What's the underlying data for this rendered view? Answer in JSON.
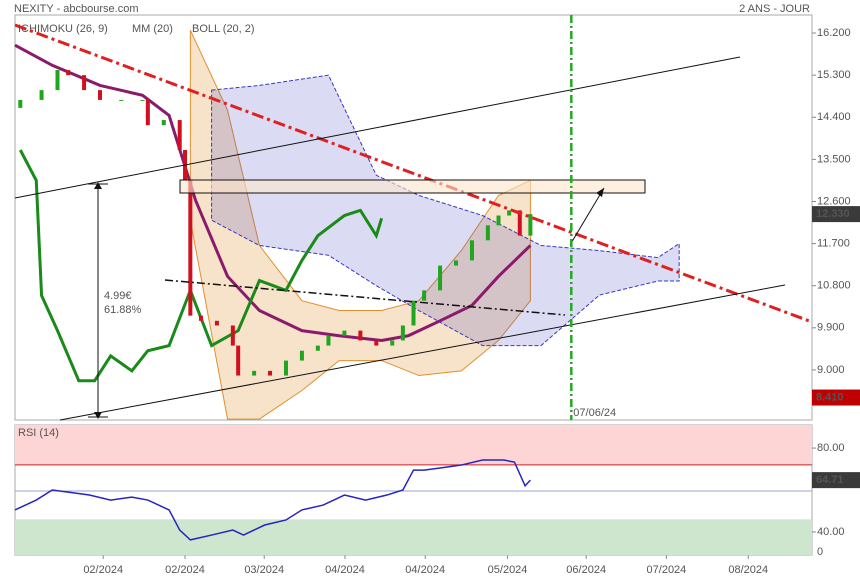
{
  "header": {
    "title": "NEXITY - abcbourse.com",
    "period": "2 ANS - JOUR"
  },
  "chart_data": [
    {
      "type": "candlestick",
      "xlim": [
        0,
        150
      ],
      "ylim": [
        7.93,
        16.585
      ],
      "yticks": [
        {
          "value": 16.2,
          "label": "16.200"
        },
        {
          "value": 15.3,
          "label": "15.300"
        },
        {
          "value": 14.4,
          "label": "14.400"
        },
        {
          "value": 13.5,
          "label": "13.500"
        },
        {
          "value": 12.6,
          "label": "12.600"
        },
        {
          "value": 11.7,
          "label": "11.700"
        },
        {
          "value": 10.8,
          "label": "10.800"
        },
        {
          "value": 9.9,
          "label": "9.900"
        },
        {
          "value": 9.0,
          "label": "9.000"
        }
      ],
      "xticks": [
        {
          "value": 16.6,
          "label": "02/2024"
        },
        {
          "value": 32,
          "label": "02/2024"
        },
        {
          "value": 46.9,
          "label": "03/2024"
        },
        {
          "value": 62.1,
          "label": "04/2024"
        },
        {
          "value": 77.2,
          "label": "04/2024"
        },
        {
          "value": 92.7,
          "label": "05/2024"
        },
        {
          "value": 107.5,
          "label": "06/2024"
        },
        {
          "value": 122.6,
          "label": "07/2024"
        },
        {
          "value": 138,
          "label": "08/2024"
        }
      ],
      "x": [
        1,
        5,
        8,
        10,
        13,
        16,
        20,
        24,
        25,
        28,
        31,
        32,
        33,
        35,
        38,
        41,
        42,
        45,
        48,
        51,
        54,
        57,
        59,
        62,
        65,
        68,
        71,
        73,
        75,
        77,
        80,
        83,
        86,
        89,
        91,
        93,
        95,
        97
      ],
      "open": [
        14.6,
        14.77,
        14.98,
        15.41,
        15.3,
        14.98,
        14.77,
        14.77,
        14.77,
        14.23,
        14.34,
        13.7,
        13.05,
        10.16,
        10.05,
        9.95,
        9.52,
        8.88,
        8.98,
        8.88,
        9.2,
        9.41,
        9.52,
        9.73,
        9.84,
        9.63,
        9.52,
        9.63,
        9.95,
        10.48,
        10.7,
        11.23,
        11.34,
        11.77,
        12.09,
        12.3,
        12.41,
        11.87
      ],
      "close": [
        14.77,
        14.98,
        15.41,
        15.3,
        14.98,
        14.77,
        14.77,
        14.77,
        14.23,
        14.34,
        13.7,
        13.05,
        10.16,
        10.05,
        9.95,
        9.52,
        8.88,
        8.98,
        8.88,
        9.2,
        9.41,
        9.52,
        9.73,
        9.84,
        9.63,
        9.52,
        9.63,
        9.95,
        10.48,
        10.7,
        11.23,
        11.34,
        11.77,
        12.09,
        12.3,
        12.41,
        11.87,
        12.33
      ],
      "up_color": "#1fa51f",
      "down_color": "#d0101e",
      "ichimoku": {
        "name": "ICHIMOKU (26, 9)",
        "color": "#3838c0",
        "cloud_x": [
          37,
          46,
          59,
          68,
          76,
          88,
          99,
          110,
          121,
          125
        ],
        "cloud_upper": [
          14.98,
          15.08,
          15.3,
          13.16,
          12.73,
          12.3,
          11.66,
          11.55,
          11.4,
          11.7
        ],
        "cloud_lower": [
          12.2,
          11.66,
          11.45,
          10.8,
          10.27,
          9.52,
          9.52,
          10.6,
          10.9,
          10.9
        ],
        "chikou_color": "#1a8a1a",
        "chikou_x": [
          1,
          4,
          5,
          8,
          12,
          15,
          18,
          22,
          25,
          29,
          33,
          37,
          42,
          46,
          51,
          54,
          57,
          62,
          65,
          68,
          69
        ],
        "chikou": [
          13.7,
          13.05,
          10.59,
          9.84,
          8.77,
          8.77,
          9.3,
          8.98,
          9.41,
          9.52,
          10.7,
          9.52,
          9.84,
          10.91,
          10.7,
          11.34,
          11.87,
          12.3,
          12.41,
          11.87,
          12.24
        ]
      },
      "mm": {
        "name": "MM (20)",
        "color": "#8b1a6b",
        "x": [
          0,
          7,
          16,
          24,
          29,
          34,
          40,
          46,
          54,
          61,
          69,
          74,
          80,
          86,
          91,
          97
        ],
        "values": [
          15.94,
          15.51,
          15.08,
          14.87,
          14.44,
          12.62,
          11.0,
          10.27,
          9.84,
          9.73,
          9.63,
          9.73,
          10.05,
          10.38,
          11.0,
          11.66
        ]
      },
      "boll": {
        "name": "BOLL (20, 2)",
        "color": "#e0902c",
        "x": [
          33,
          40,
          46,
          54,
          61,
          69,
          76,
          84,
          91,
          97
        ],
        "upper": [
          16.26,
          14.55,
          11.66,
          10.48,
          10.27,
          10.27,
          10.48,
          11.55,
          12.73,
          13.05
        ],
        "lower": [
          12.2,
          7.95,
          7.95,
          8.56,
          9.2,
          9.2,
          8.88,
          8.98,
          9.63,
          10.48
        ]
      },
      "last_value": 12.33,
      "last_value_label": "12.330",
      "low_value": 8.41,
      "low_value_label": "8.410",
      "marker": {
        "x": 104.7,
        "label": "07/06/24"
      },
      "annotation": [
        "4.99€",
        "61.88%"
      ]
    },
    {
      "type": "line",
      "title": "RSI (14)",
      "color": "#2424c0",
      "ylim": [
        29,
        91
      ],
      "yticks": [
        {
          "value": 80,
          "label": "80.00"
        },
        {
          "value": 40,
          "label": "40.00"
        }
      ],
      "bottom_label": "0",
      "overbought": 72,
      "midline": 59.5,
      "oversold": 46,
      "x": [
        0,
        4,
        7,
        10,
        14,
        18,
        22,
        25,
        29,
        31,
        33,
        37,
        41,
        43,
        47,
        51,
        54,
        58,
        62,
        66,
        70,
        73,
        75,
        77,
        80,
        84,
        88,
        92,
        94,
        96,
        97
      ],
      "values": [
        50.5,
        55.2,
        60,
        59,
        57.6,
        55.2,
        56.6,
        55.2,
        50.5,
        40.9,
        36.2,
        38.5,
        40.9,
        38.5,
        43.3,
        45.7,
        50.5,
        52.8,
        57.6,
        55.2,
        57.6,
        60,
        69.5,
        69.5,
        70.5,
        71.9,
        74.3,
        74.3,
        73.3,
        62,
        64.71
      ],
      "last_value": 64.71
    }
  ]
}
